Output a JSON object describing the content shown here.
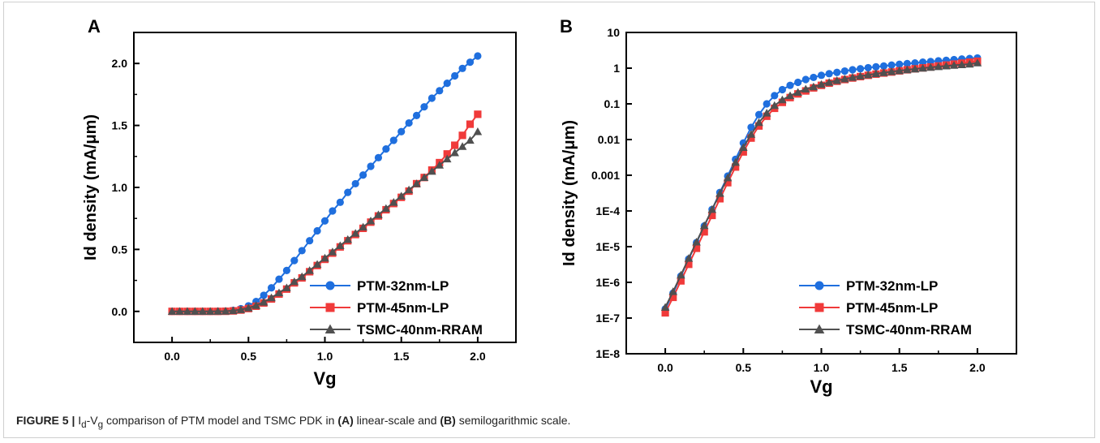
{
  "caption": {
    "figure_label": "FIGURE 5 |",
    "text_parts": [
      "I",
      "d",
      "-V",
      "g",
      " comparison of PTM model and TSMC PDK in ",
      "(A)",
      " linear-scale and ",
      "(B)",
      " semilogarithmic scale."
    ]
  },
  "colors": {
    "PTM-32nm-LP": "#1f6fde",
    "PTM-45nm-LP": "#f03a3a",
    "TSMC-40nm-RRAM": "#505050"
  },
  "chart_data": [
    {
      "panel": "A",
      "type": "line",
      "yscale": "linear",
      "xlabel": "Vg",
      "ylabel": "Id density (mA/μm)",
      "xlim": [
        -0.25,
        2.25
      ],
      "ylim": [
        -0.25,
        2.25
      ],
      "xticks": [
        "0.0",
        "0.5",
        "1.0",
        "1.5",
        "2.0"
      ],
      "xtick_values": [
        0,
        0.5,
        1.0,
        1.5,
        2.0
      ],
      "yticks": [
        "0.0",
        "0.5",
        "1.0",
        "1.5",
        "2.0"
      ],
      "ytick_values": [
        0,
        0.5,
        1.0,
        1.5,
        2.0
      ],
      "legend_position": "bottom-right",
      "series": [
        {
          "name": "PTM-32nm-LP",
          "marker": "circle",
          "x": [
            0,
            0.05,
            0.1,
            0.15,
            0.2,
            0.25,
            0.3,
            0.35,
            0.4,
            0.45,
            0.5,
            0.55,
            0.6,
            0.65,
            0.7,
            0.75,
            0.8,
            0.85,
            0.9,
            0.95,
            1.0,
            1.05,
            1.1,
            1.15,
            1.2,
            1.25,
            1.3,
            1.35,
            1.4,
            1.45,
            1.5,
            1.55,
            1.6,
            1.65,
            1.7,
            1.75,
            1.8,
            1.85,
            1.9,
            1.95,
            2.0
          ],
          "y": [
            0,
            0,
            0,
            0,
            0,
            0,
            0.001,
            0.003,
            0.009,
            0.022,
            0.045,
            0.08,
            0.13,
            0.19,
            0.26,
            0.33,
            0.41,
            0.49,
            0.57,
            0.65,
            0.73,
            0.81,
            0.88,
            0.96,
            1.03,
            1.1,
            1.17,
            1.24,
            1.31,
            1.38,
            1.45,
            1.52,
            1.58,
            1.65,
            1.72,
            1.78,
            1.84,
            1.9,
            1.96,
            2.01,
            2.06
          ]
        },
        {
          "name": "PTM-45nm-LP",
          "marker": "square",
          "x": [
            0,
            0.05,
            0.1,
            0.15,
            0.2,
            0.25,
            0.3,
            0.35,
            0.4,
            0.45,
            0.5,
            0.55,
            0.6,
            0.65,
            0.7,
            0.75,
            0.8,
            0.85,
            0.9,
            0.95,
            1.0,
            1.05,
            1.1,
            1.15,
            1.2,
            1.25,
            1.3,
            1.35,
            1.4,
            1.45,
            1.5,
            1.55,
            1.6,
            1.65,
            1.7,
            1.75,
            1.8,
            1.85,
            1.9,
            1.95,
            2.0
          ],
          "y": [
            0,
            0,
            0,
            0,
            0,
            0,
            0,
            0.001,
            0.004,
            0.011,
            0.023,
            0.042,
            0.068,
            0.1,
            0.14,
            0.18,
            0.23,
            0.27,
            0.32,
            0.37,
            0.42,
            0.47,
            0.52,
            0.57,
            0.62,
            0.67,
            0.72,
            0.77,
            0.82,
            0.87,
            0.92,
            0.97,
            1.03,
            1.08,
            1.14,
            1.2,
            1.27,
            1.34,
            1.42,
            1.51,
            1.59
          ]
        },
        {
          "name": "TSMC-40nm-RRAM",
          "marker": "triangle",
          "x": [
            0,
            0.05,
            0.1,
            0.15,
            0.2,
            0.25,
            0.3,
            0.35,
            0.4,
            0.45,
            0.5,
            0.55,
            0.6,
            0.65,
            0.7,
            0.75,
            0.8,
            0.85,
            0.9,
            0.95,
            1.0,
            1.05,
            1.1,
            1.15,
            1.2,
            1.25,
            1.3,
            1.35,
            1.4,
            1.45,
            1.5,
            1.55,
            1.6,
            1.65,
            1.7,
            1.75,
            1.8,
            1.85,
            1.9,
            1.95,
            2.0
          ],
          "y": [
            0,
            0,
            0,
            0,
            0,
            0,
            0.001,
            0.002,
            0.006,
            0.014,
            0.028,
            0.048,
            0.075,
            0.11,
            0.15,
            0.19,
            0.24,
            0.28,
            0.33,
            0.38,
            0.43,
            0.48,
            0.53,
            0.58,
            0.63,
            0.68,
            0.73,
            0.78,
            0.83,
            0.88,
            0.93,
            0.98,
            1.03,
            1.08,
            1.13,
            1.18,
            1.23,
            1.28,
            1.33,
            1.38,
            1.45
          ]
        }
      ]
    },
    {
      "panel": "B",
      "type": "line",
      "yscale": "log",
      "xlabel": "Vg",
      "ylabel": "Id density (mA/μm)",
      "xlim": [
        -0.25,
        2.25
      ],
      "ylim": [
        1e-08,
        10
      ],
      "xticks": [
        "0.0",
        "0.5",
        "1.0",
        "1.5",
        "2.0"
      ],
      "xtick_values": [
        0,
        0.5,
        1.0,
        1.5,
        2.0
      ],
      "yticks": [
        "1E-8",
        "1E-7",
        "1E-6",
        "1E-5",
        "1E-4",
        "0.001",
        "0.01",
        "0.1",
        "1",
        "10"
      ],
      "ytick_values": [
        1e-08,
        1e-07,
        1e-06,
        1e-05,
        0.0001,
        0.001,
        0.01,
        0.1,
        1,
        10
      ],
      "legend_position": "bottom-right",
      "series": [
        {
          "name": "PTM-32nm-LP",
          "marker": "circle",
          "x": [
            0,
            0.05,
            0.1,
            0.15,
            0.2,
            0.25,
            0.3,
            0.35,
            0.4,
            0.45,
            0.5,
            0.55,
            0.6,
            0.65,
            0.7,
            0.75,
            0.8,
            0.85,
            0.9,
            0.95,
            1.0,
            1.05,
            1.1,
            1.15,
            1.2,
            1.25,
            1.3,
            1.35,
            1.4,
            1.45,
            1.5,
            1.55,
            1.6,
            1.65,
            1.7,
            1.75,
            1.8,
            1.85,
            1.9,
            1.95,
            2.0
          ],
          "y": [
            1.8e-07,
            5e-07,
            1.5e-06,
            4.5e-06,
            1.3e-05,
            3.8e-05,
            0.00011,
            0.00033,
            0.00095,
            0.0028,
            0.008,
            0.022,
            0.05,
            0.1,
            0.17,
            0.25,
            0.33,
            0.4,
            0.48,
            0.55,
            0.63,
            0.7,
            0.76,
            0.83,
            0.9,
            0.96,
            1.03,
            1.09,
            1.15,
            1.22,
            1.28,
            1.34,
            1.4,
            1.47,
            1.53,
            1.6,
            1.66,
            1.73,
            1.8,
            1.86,
            1.93
          ]
        },
        {
          "name": "PTM-45nm-LP",
          "marker": "square",
          "x": [
            0,
            0.05,
            0.1,
            0.15,
            0.2,
            0.25,
            0.3,
            0.35,
            0.4,
            0.45,
            0.5,
            0.55,
            0.6,
            0.65,
            0.7,
            0.75,
            0.8,
            0.85,
            0.9,
            0.95,
            1.0,
            1.05,
            1.1,
            1.15,
            1.2,
            1.25,
            1.3,
            1.35,
            1.4,
            1.45,
            1.5,
            1.55,
            1.6,
            1.65,
            1.7,
            1.75,
            1.8,
            1.85,
            1.9,
            1.95,
            2.0
          ],
          "y": [
            1.4e-07,
            3.8e-07,
            1.1e-06,
            3.2e-06,
            9e-06,
            2.6e-05,
            7.5e-05,
            0.00022,
            0.00062,
            0.0017,
            0.0045,
            0.011,
            0.024,
            0.045,
            0.075,
            0.11,
            0.15,
            0.19,
            0.23,
            0.28,
            0.33,
            0.38,
            0.43,
            0.48,
            0.53,
            0.58,
            0.63,
            0.68,
            0.73,
            0.78,
            0.84,
            0.9,
            0.96,
            1.02,
            1.08,
            1.15,
            1.22,
            1.3,
            1.38,
            1.47,
            1.56
          ]
        },
        {
          "name": "TSMC-40nm-RRAM",
          "marker": "triangle",
          "x": [
            0,
            0.05,
            0.1,
            0.15,
            0.2,
            0.25,
            0.3,
            0.35,
            0.4,
            0.45,
            0.5,
            0.55,
            0.6,
            0.65,
            0.7,
            0.75,
            0.8,
            0.85,
            0.9,
            0.95,
            1.0,
            1.05,
            1.1,
            1.15,
            1.2,
            1.25,
            1.3,
            1.35,
            1.4,
            1.45,
            1.5,
            1.55,
            1.6,
            1.65,
            1.7,
            1.75,
            1.8,
            1.85,
            1.9,
            1.95,
            2.0
          ],
          "y": [
            2e-07,
            5.5e-07,
            1.6e-06,
            4.7e-06,
            1.35e-05,
            3.9e-05,
            0.00011,
            0.00031,
            0.00085,
            0.0023,
            0.006,
            0.014,
            0.03,
            0.055,
            0.09,
            0.13,
            0.17,
            0.21,
            0.26,
            0.3,
            0.35,
            0.4,
            0.45,
            0.5,
            0.55,
            0.6,
            0.65,
            0.7,
            0.75,
            0.8,
            0.85,
            0.9,
            0.95,
            1.0,
            1.05,
            1.1,
            1.15,
            1.2,
            1.25,
            1.3,
            1.4
          ]
        }
      ]
    }
  ]
}
